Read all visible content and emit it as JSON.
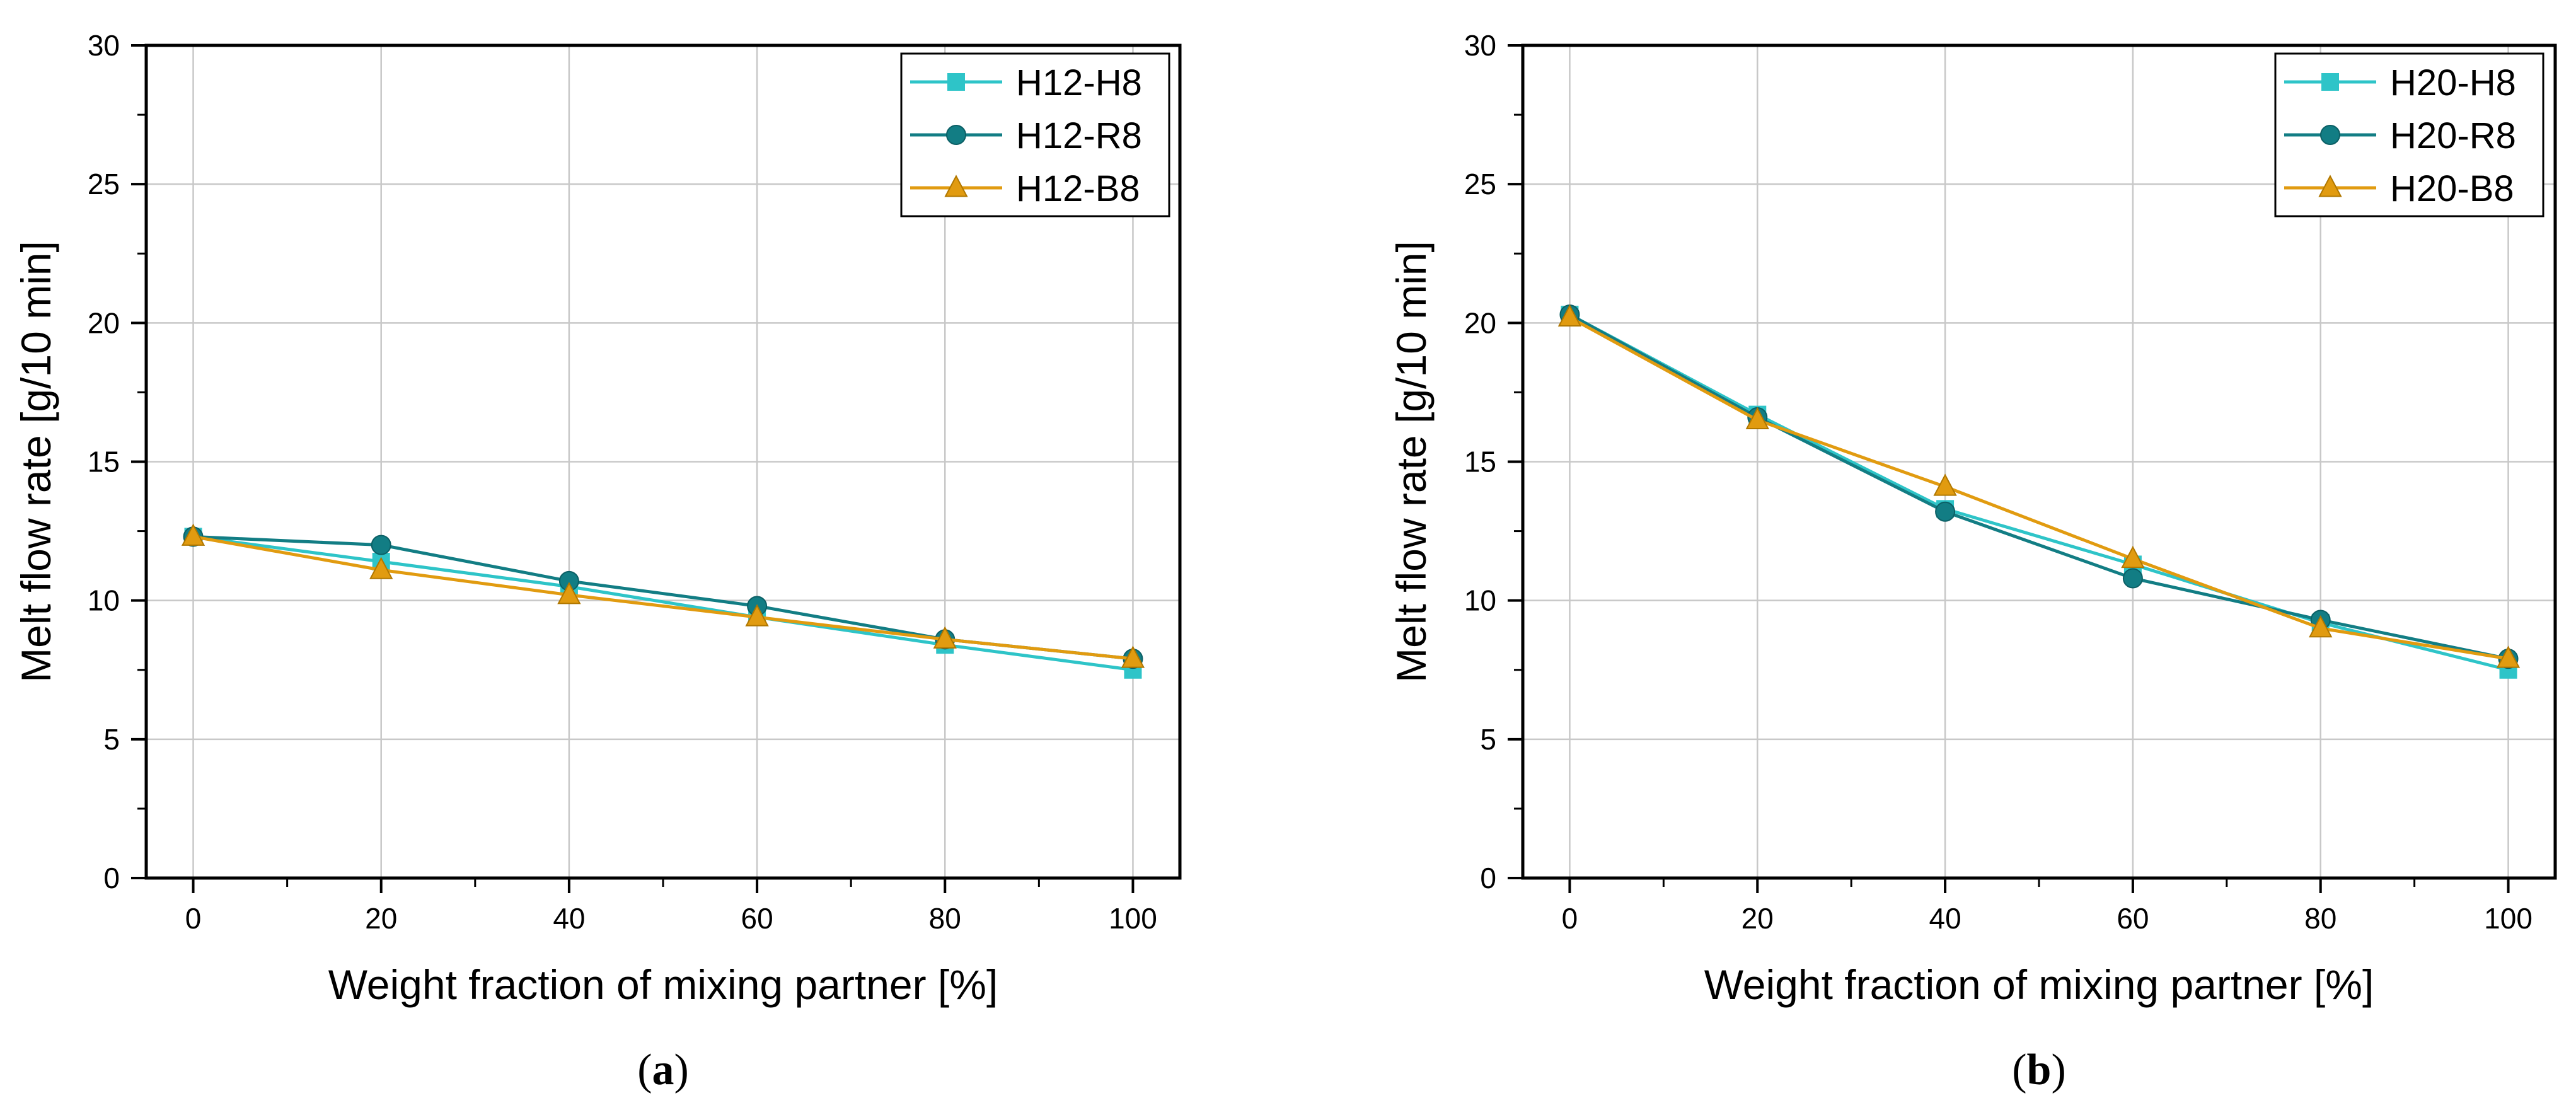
{
  "colors": {
    "series_H8": "#2ec4c8",
    "series_R8": "#127d84",
    "series_B8": "#e19b10",
    "grid": "#c8c8c8",
    "axis": "#000000"
  },
  "chart_data": [
    {
      "type": "line",
      "panel_label": {
        "open": "(",
        "letter": "a",
        "close": ")"
      },
      "xlabel": "Weight fraction of mixing partner [%]",
      "ylabel": "Melt flow rate [g/10 min]",
      "xlim": [
        -5,
        105
      ],
      "ylim": [
        0,
        30
      ],
      "xticks": [
        0,
        20,
        40,
        60,
        80,
        100
      ],
      "yticks": [
        0,
        5,
        10,
        15,
        20,
        25,
        30
      ],
      "grid": true,
      "legend_position": "top-right",
      "x": [
        0,
        20,
        40,
        60,
        80,
        100
      ],
      "series": [
        {
          "name": "H12-H8",
          "marker": "square",
          "color_key": "series_H8",
          "values": [
            12.3,
            11.4,
            10.5,
            9.4,
            8.4,
            7.5
          ]
        },
        {
          "name": "H12-R8",
          "marker": "circle",
          "color_key": "series_R8",
          "values": [
            12.3,
            12.0,
            10.7,
            9.8,
            8.6,
            7.9
          ]
        },
        {
          "name": "H12-B8",
          "marker": "triangle",
          "color_key": "series_B8",
          "values": [
            12.3,
            11.1,
            10.2,
            9.4,
            8.6,
            7.9
          ]
        }
      ]
    },
    {
      "type": "line",
      "panel_label": {
        "open": "(",
        "letter": "b",
        "close": ")"
      },
      "xlabel": "Weight fraction of mixing partner [%]",
      "ylabel": "Melt flow rate [g/10 min]",
      "xlim": [
        -5,
        105
      ],
      "ylim": [
        0,
        30
      ],
      "xticks": [
        0,
        20,
        40,
        60,
        80,
        100
      ],
      "yticks": [
        0,
        5,
        10,
        15,
        20,
        25,
        30
      ],
      "grid": true,
      "legend_position": "top-right",
      "x": [
        0,
        20,
        40,
        60,
        80,
        100
      ],
      "series": [
        {
          "name": "H20-H8",
          "marker": "square",
          "color_key": "series_H8",
          "values": [
            20.3,
            16.7,
            13.3,
            11.3,
            9.2,
            7.5
          ]
        },
        {
          "name": "H20-R8",
          "marker": "circle",
          "color_key": "series_R8",
          "values": [
            20.3,
            16.6,
            13.2,
            10.8,
            9.3,
            7.9
          ]
        },
        {
          "name": "H20-B8",
          "marker": "triangle",
          "color_key": "series_B8",
          "values": [
            20.2,
            16.5,
            14.1,
            11.5,
            9.0,
            7.9
          ]
        }
      ]
    }
  ]
}
